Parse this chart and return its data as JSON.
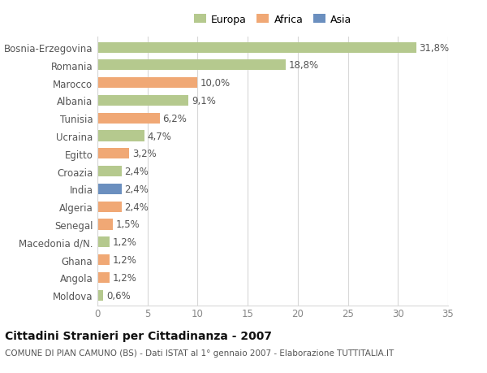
{
  "categories": [
    "Bosnia-Erzegovina",
    "Romania",
    "Marocco",
    "Albania",
    "Tunisia",
    "Ucraina",
    "Egitto",
    "Croazia",
    "India",
    "Algeria",
    "Senegal",
    "Macedonia d/N.",
    "Ghana",
    "Angola",
    "Moldova"
  ],
  "values": [
    31.8,
    18.8,
    10.0,
    9.1,
    6.2,
    4.7,
    3.2,
    2.4,
    2.4,
    2.4,
    1.5,
    1.2,
    1.2,
    1.2,
    0.6
  ],
  "labels": [
    "31,8%",
    "18,8%",
    "10,0%",
    "9,1%",
    "6,2%",
    "4,7%",
    "3,2%",
    "2,4%",
    "2,4%",
    "2,4%",
    "1,5%",
    "1,2%",
    "1,2%",
    "1,2%",
    "0,6%"
  ],
  "colors": [
    "#b5c98e",
    "#b5c98e",
    "#f0a875",
    "#b5c98e",
    "#f0a875",
    "#b5c98e",
    "#f0a875",
    "#b5c98e",
    "#6b8fbf",
    "#f0a875",
    "#f0a875",
    "#b5c98e",
    "#f0a875",
    "#f0a875",
    "#b5c98e"
  ],
  "legend_labels": [
    "Europa",
    "Africa",
    "Asia"
  ],
  "legend_colors": [
    "#b5c98e",
    "#f0a875",
    "#6b8fbf"
  ],
  "title": "Cittadini Stranieri per Cittadinanza - 2007",
  "subtitle": "COMUNE DI PIAN CAMUNO (BS) - Dati ISTAT al 1° gennaio 2007 - Elaborazione TUTTITALIA.IT",
  "xlim": [
    0,
    35
  ],
  "xticks": [
    0,
    5,
    10,
    15,
    20,
    25,
    30,
    35
  ],
  "background_color": "#ffffff",
  "grid_color": "#d8d8d8",
  "bar_height": 0.6,
  "title_fontsize": 10,
  "subtitle_fontsize": 7.5,
  "tick_fontsize": 8.5,
  "label_fontsize": 8.5
}
